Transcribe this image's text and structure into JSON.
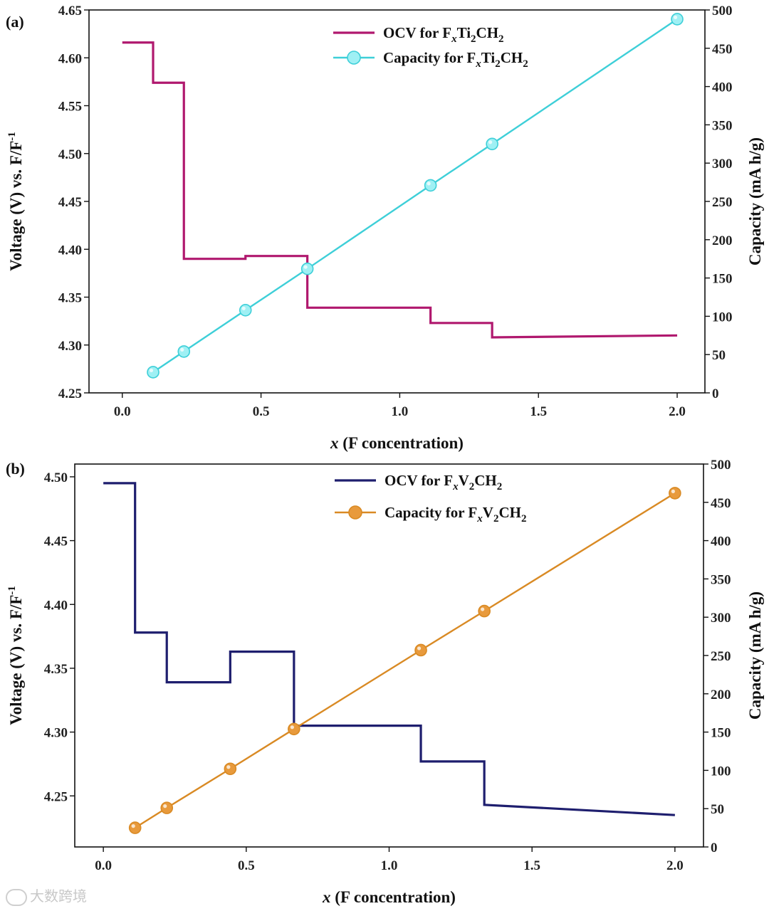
{
  "chart_data": [
    {
      "type": "line",
      "panel_label": "(a)",
      "xlabel_var": "x",
      "xlabel_rest": " (F concentration)",
      "ylabel": "Voltage (V) vs. F/F",
      "ylabel_sup": "-1",
      "y2label": "Capacity (mA h/g)",
      "xlim": [
        -0.12,
        2.1
      ],
      "ylim": [
        4.25,
        4.65
      ],
      "y2lim": [
        0,
        500
      ],
      "xticks": [
        0.0,
        0.5,
        1.0,
        1.5,
        2.0
      ],
      "xtick_labels": [
        "0.0",
        "0.5",
        "1.0",
        "1.5",
        "2.0"
      ],
      "yticks": [
        4.25,
        4.3,
        4.35,
        4.4,
        4.45,
        4.5,
        4.55,
        4.6,
        4.65
      ],
      "ytick_labels": [
        "4.25",
        "4.30",
        "4.35",
        "4.40",
        "4.45",
        "4.50",
        "4.55",
        "4.60",
        "4.65"
      ],
      "y2ticks": [
        0,
        50,
        100,
        150,
        200,
        250,
        300,
        350,
        400,
        450,
        500
      ],
      "y2tick_labels": [
        "0",
        "50",
        "100",
        "150",
        "200",
        "250",
        "300",
        "350",
        "400",
        "450",
        "500"
      ],
      "series": [
        {
          "name": "OCV for FxTi2CH2",
          "legend_parts": [
            "OCV for F",
            "x",
            "Ti",
            "2",
            "CH",
            "2"
          ],
          "axis": "left",
          "style": "step",
          "color": "#b0186e",
          "x": [
            0.0,
            0.111,
            0.222,
            0.444,
            0.667,
            1.111,
            1.333,
            2.0
          ],
          "y": [
            4.616,
            4.574,
            4.39,
            4.393,
            4.339,
            4.323,
            4.308,
            4.31
          ]
        },
        {
          "name": "Capacity for FxTi2CH2",
          "legend_parts": [
            "Capacity for F",
            "x",
            "Ti",
            "2",
            "CH",
            "2"
          ],
          "axis": "right",
          "style": "line-marker",
          "color": "#3ecfd8",
          "marker_fill": "#9ff0f4",
          "x": [
            0.111,
            0.222,
            0.444,
            0.667,
            1.111,
            1.333,
            2.0
          ],
          "y": [
            27,
            54,
            108,
            162,
            271,
            325,
            488
          ]
        }
      ]
    },
    {
      "type": "line",
      "panel_label": "(b)",
      "xlabel_var": "x",
      "xlabel_rest": " (F concentration)",
      "ylabel": "Voltage (V) vs. F/F",
      "ylabel_sup": "-1",
      "y2label": "Capacity (mA h/g)",
      "xlim": [
        -0.1,
        2.1
      ],
      "ylim": [
        4.21,
        4.51
      ],
      "y2lim": [
        0,
        500
      ],
      "xticks": [
        0.0,
        0.5,
        1.0,
        1.5,
        2.0
      ],
      "xtick_labels": [
        "0.0",
        "0.5",
        "1.0",
        "1.5",
        "2.0"
      ],
      "yticks": [
        4.25,
        4.3,
        4.35,
        4.4,
        4.45,
        4.5
      ],
      "ytick_labels": [
        "4.25",
        "4.30",
        "4.35",
        "4.40",
        "4.45",
        "4.50"
      ],
      "y2ticks": [
        0,
        50,
        100,
        150,
        200,
        250,
        300,
        350,
        400,
        450,
        500
      ],
      "y2tick_labels": [
        "0",
        "50",
        "100",
        "150",
        "200",
        "250",
        "300",
        "350",
        "400",
        "450",
        "500"
      ],
      "series": [
        {
          "name": "OCV for FxV2CH2",
          "legend_parts": [
            "OCV for F",
            "x",
            "V",
            "2",
            "CH",
            "2"
          ],
          "axis": "left",
          "style": "step",
          "color": "#1e1e6e",
          "x": [
            0.0,
            0.111,
            0.222,
            0.444,
            0.667,
            1.111,
            1.333,
            2.0
          ],
          "y": [
            4.495,
            4.378,
            4.339,
            4.363,
            4.305,
            4.277,
            4.243,
            4.235
          ]
        },
        {
          "name": "Capacity for FxV2CH2",
          "legend_parts": [
            "Capacity for F",
            "x",
            "V",
            "2",
            "CH",
            "2"
          ],
          "axis": "right",
          "style": "line-marker",
          "color": "#d98a24",
          "marker_fill": "#e89a3c",
          "x": [
            0.111,
            0.222,
            0.444,
            0.667,
            1.111,
            1.333,
            2.0
          ],
          "y": [
            25,
            51,
            102,
            154,
            257,
            308,
            462
          ]
        }
      ]
    }
  ],
  "watermark": {
    "text": "大数跨境"
  }
}
